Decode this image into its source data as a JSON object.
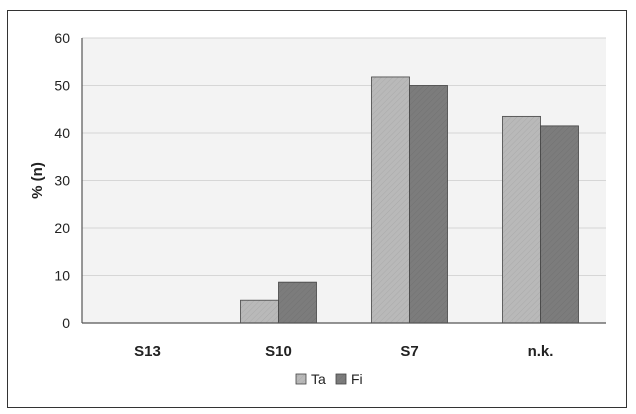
{
  "chart_data": {
    "type": "bar",
    "title": "",
    "xlabel": "",
    "ylabel": "% (n)",
    "ylim": [
      0,
      60
    ],
    "yticks": [
      0,
      10,
      20,
      30,
      40,
      50,
      60
    ],
    "grid": true,
    "legend_position": "bottom",
    "categories": [
      "S13",
      "S10",
      "S7",
      "n.k."
    ],
    "series": [
      {
        "name": "Ta",
        "values": [
          0,
          4.8,
          51.8,
          43.5
        ],
        "color": "#b9b9b9"
      },
      {
        "name": "Fi",
        "values": [
          0,
          8.6,
          50.0,
          41.5
        ],
        "color": "#7c7c7c"
      }
    ]
  },
  "colors": {
    "plot_background": "#f3f3f3",
    "gridline": "#d6d6d6",
    "frame": "#333333"
  }
}
